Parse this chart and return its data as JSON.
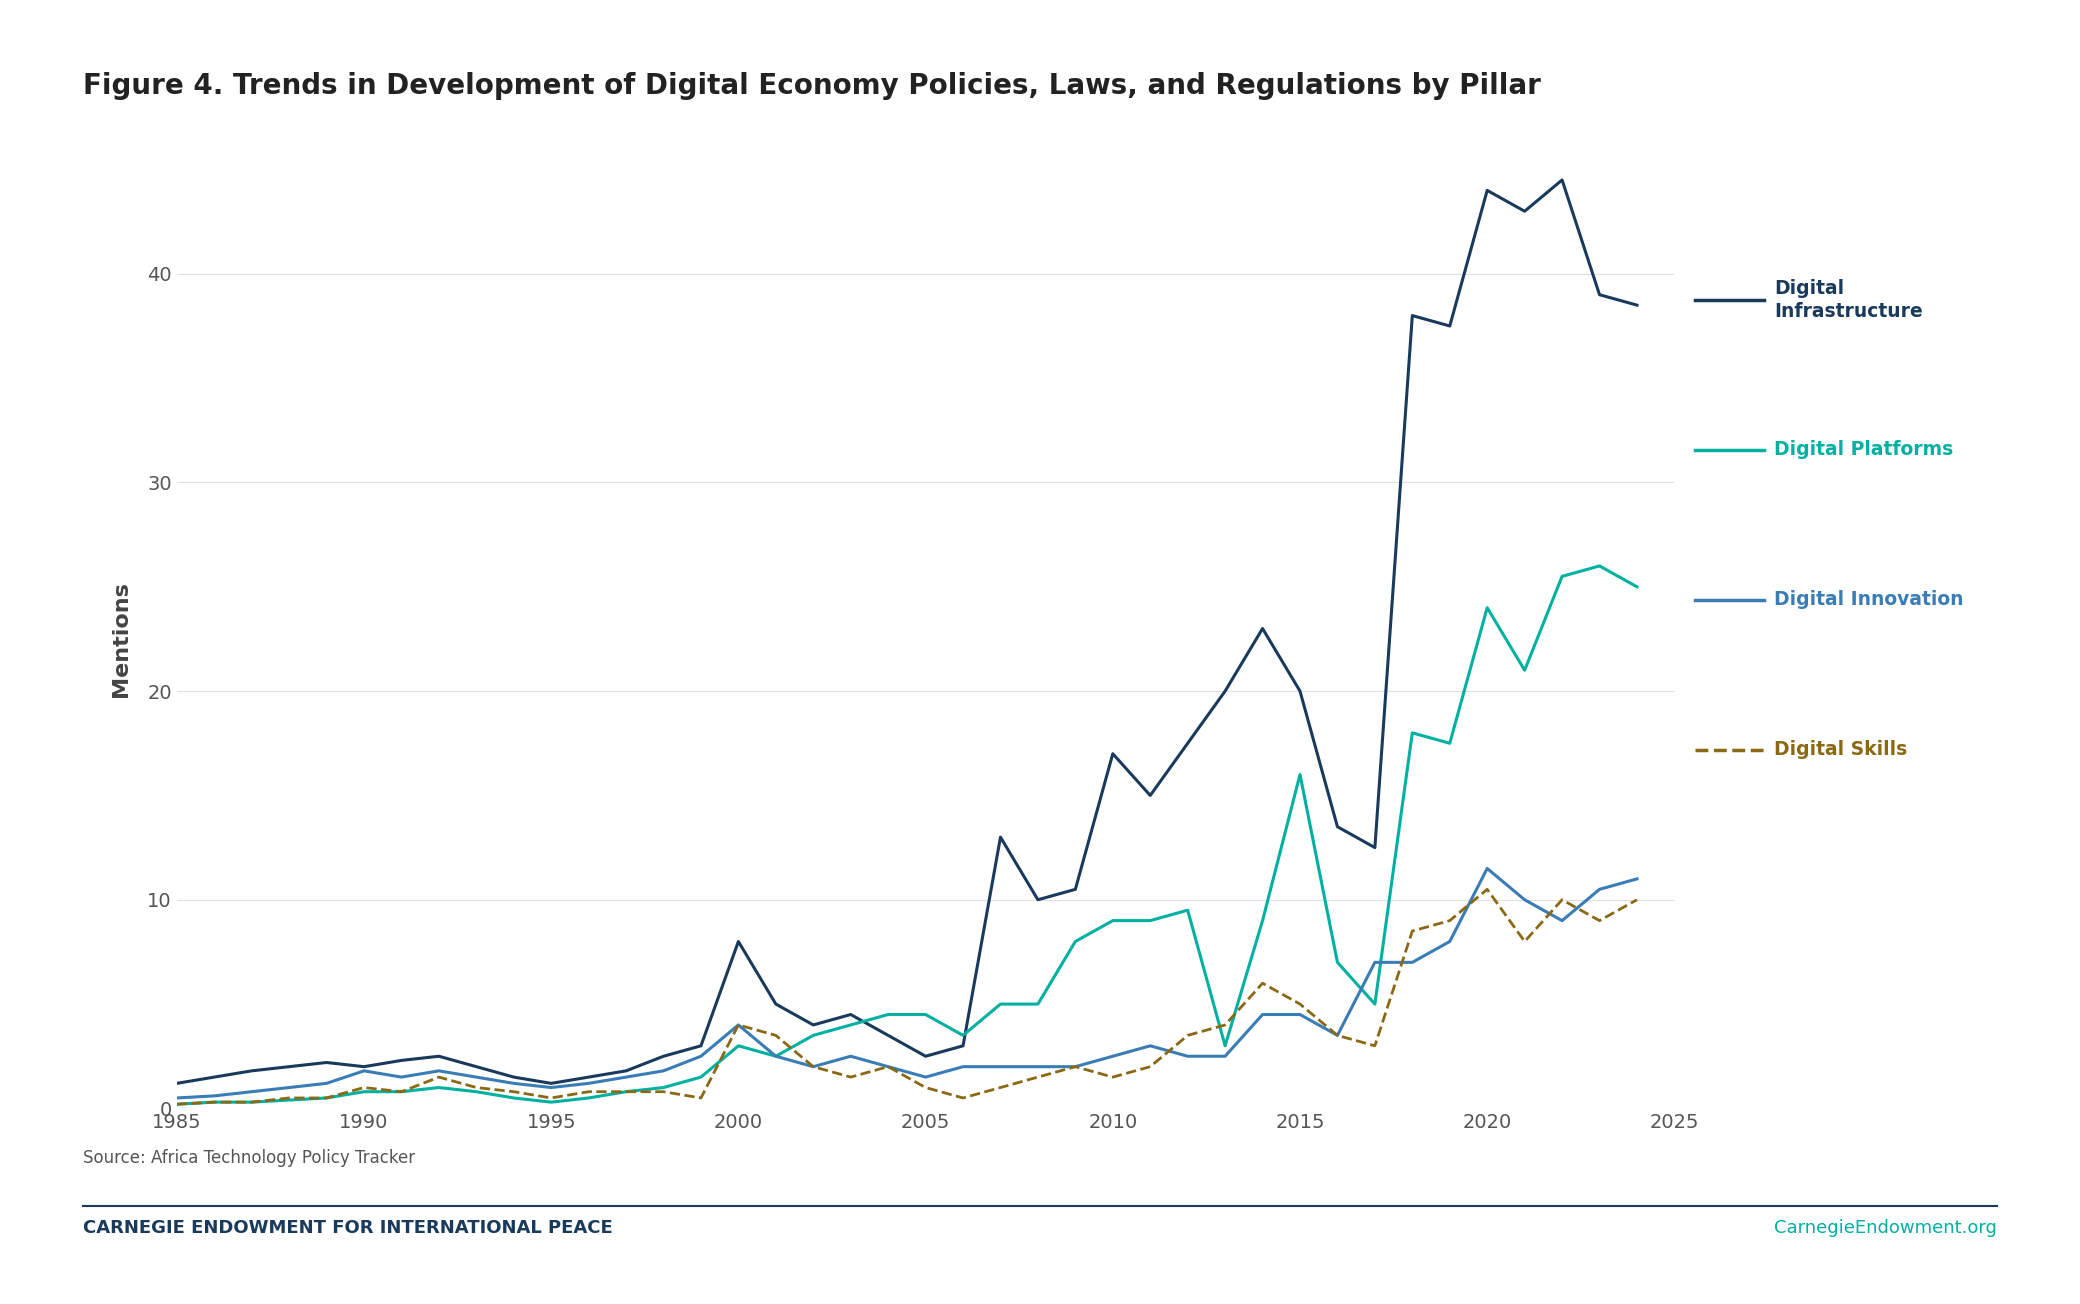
{
  "title": "Figure 4. Trends in Development of Digital Economy Policies, Laws, and Regulations by Pillar",
  "ylabel": "Mentions",
  "source": "Source: Africa Technology Policy Tracker",
  "footer_left": "CARNEGIE ENDOWMENT FOR INTERNATIONAL PEACE",
  "footer_right": "CarnegieEndowment.org",
  "xlim": [
    1985,
    2025
  ],
  "ylim": [
    0,
    45
  ],
  "yticks": [
    0,
    10,
    20,
    30,
    40
  ],
  "xticks": [
    1985,
    1990,
    1995,
    2000,
    2005,
    2010,
    2015,
    2020,
    2025
  ],
  "background_color": "#ffffff",
  "grid_color": "#e0e0e0",
  "series": [
    {
      "name": "Digital Infrastructure",
      "color": "#1a3a5c",
      "linewidth": 2.2,
      "linestyle": "solid",
      "x": [
        1985,
        1986,
        1987,
        1988,
        1989,
        1990,
        1991,
        1992,
        1993,
        1994,
        1995,
        1996,
        1997,
        1998,
        1999,
        2000,
        2001,
        2002,
        2003,
        2004,
        2005,
        2006,
        2007,
        2008,
        2009,
        2010,
        2011,
        2012,
        2013,
        2014,
        2015,
        2016,
        2017,
        2018,
        2019,
        2020,
        2021,
        2022,
        2023,
        2024
      ],
      "y": [
        1.2,
        1.5,
        1.8,
        2.0,
        2.2,
        2.0,
        2.3,
        2.5,
        2.0,
        1.5,
        1.2,
        1.5,
        1.8,
        2.5,
        3.0,
        8.0,
        5.0,
        4.0,
        4.5,
        3.5,
        2.5,
        3.0,
        13.0,
        10.0,
        10.5,
        17.0,
        15.0,
        17.5,
        20.0,
        23.0,
        20.0,
        13.5,
        12.5,
        38.0,
        37.5,
        44.0,
        43.0,
        44.5,
        39.0,
        38.5
      ]
    },
    {
      "name": "Digital Platforms",
      "color": "#00b0a0",
      "linewidth": 2.2,
      "linestyle": "solid",
      "x": [
        1985,
        1986,
        1987,
        1988,
        1989,
        1990,
        1991,
        1992,
        1993,
        1994,
        1995,
        1996,
        1997,
        1998,
        1999,
        2000,
        2001,
        2002,
        2003,
        2004,
        2005,
        2006,
        2007,
        2008,
        2009,
        2010,
        2011,
        2012,
        2013,
        2014,
        2015,
        2016,
        2017,
        2018,
        2019,
        2020,
        2021,
        2022,
        2023,
        2024
      ],
      "y": [
        0.2,
        0.3,
        0.3,
        0.4,
        0.5,
        0.8,
        0.8,
        1.0,
        0.8,
        0.5,
        0.3,
        0.5,
        0.8,
        1.0,
        1.5,
        3.0,
        2.5,
        3.5,
        4.0,
        4.5,
        4.5,
        3.5,
        5.0,
        5.0,
        8.0,
        9.0,
        9.0,
        9.5,
        3.0,
        9.0,
        16.0,
        7.0,
        5.0,
        18.0,
        17.5,
        24.0,
        21.0,
        25.5,
        26.0,
        25.0
      ]
    },
    {
      "name": "Digital Innovation",
      "color": "#3a7cb5",
      "linewidth": 2.2,
      "linestyle": "solid",
      "x": [
        1985,
        1986,
        1987,
        1988,
        1989,
        1990,
        1991,
        1992,
        1993,
        1994,
        1995,
        1996,
        1997,
        1998,
        1999,
        2000,
        2001,
        2002,
        2003,
        2004,
        2005,
        2006,
        2007,
        2008,
        2009,
        2010,
        2011,
        2012,
        2013,
        2014,
        2015,
        2016,
        2017,
        2018,
        2019,
        2020,
        2021,
        2022,
        2023,
        2024
      ],
      "y": [
        0.5,
        0.6,
        0.8,
        1.0,
        1.2,
        1.8,
        1.5,
        1.8,
        1.5,
        1.2,
        1.0,
        1.2,
        1.5,
        1.8,
        2.5,
        4.0,
        2.5,
        2.0,
        2.5,
        2.0,
        1.5,
        2.0,
        2.0,
        2.0,
        2.0,
        2.5,
        3.0,
        2.5,
        2.5,
        4.5,
        4.5,
        3.5,
        7.0,
        7.0,
        8.0,
        11.5,
        10.0,
        9.0,
        10.5,
        11.0
      ]
    },
    {
      "name": "Digital Skills",
      "color": "#8b6914",
      "linewidth": 2.0,
      "linestyle": "dashed",
      "x": [
        1985,
        1986,
        1987,
        1988,
        1989,
        1990,
        1991,
        1992,
        1993,
        1994,
        1995,
        1996,
        1997,
        1998,
        1999,
        2000,
        2001,
        2002,
        2003,
        2004,
        2005,
        2006,
        2007,
        2008,
        2009,
        2010,
        2011,
        2012,
        2013,
        2014,
        2015,
        2016,
        2017,
        2018,
        2019,
        2020,
        2021,
        2022,
        2023,
        2024
      ],
      "y": [
        0.2,
        0.3,
        0.3,
        0.5,
        0.5,
        1.0,
        0.8,
        1.5,
        1.0,
        0.8,
        0.5,
        0.8,
        0.8,
        0.8,
        0.5,
        4.0,
        3.5,
        2.0,
        1.5,
        2.0,
        1.0,
        0.5,
        1.0,
        1.5,
        2.0,
        1.5,
        2.0,
        3.5,
        4.0,
        6.0,
        5.0,
        3.5,
        3.0,
        8.5,
        9.0,
        10.5,
        8.0,
        10.0,
        9.0,
        10.0
      ]
    }
  ],
  "legend_items": [
    {
      "label": "Digital\nInfrastructure",
      "color": "#1a3a5c",
      "linestyle": "solid"
    },
    {
      "label": "Digital Platforms",
      "color": "#00b0a0",
      "linestyle": "solid"
    },
    {
      "label": "Digital Innovation",
      "color": "#3a7cb5",
      "linestyle": "solid"
    },
    {
      "label": "Digital Skills",
      "color": "#8b6914",
      "linestyle": "dashed"
    }
  ]
}
